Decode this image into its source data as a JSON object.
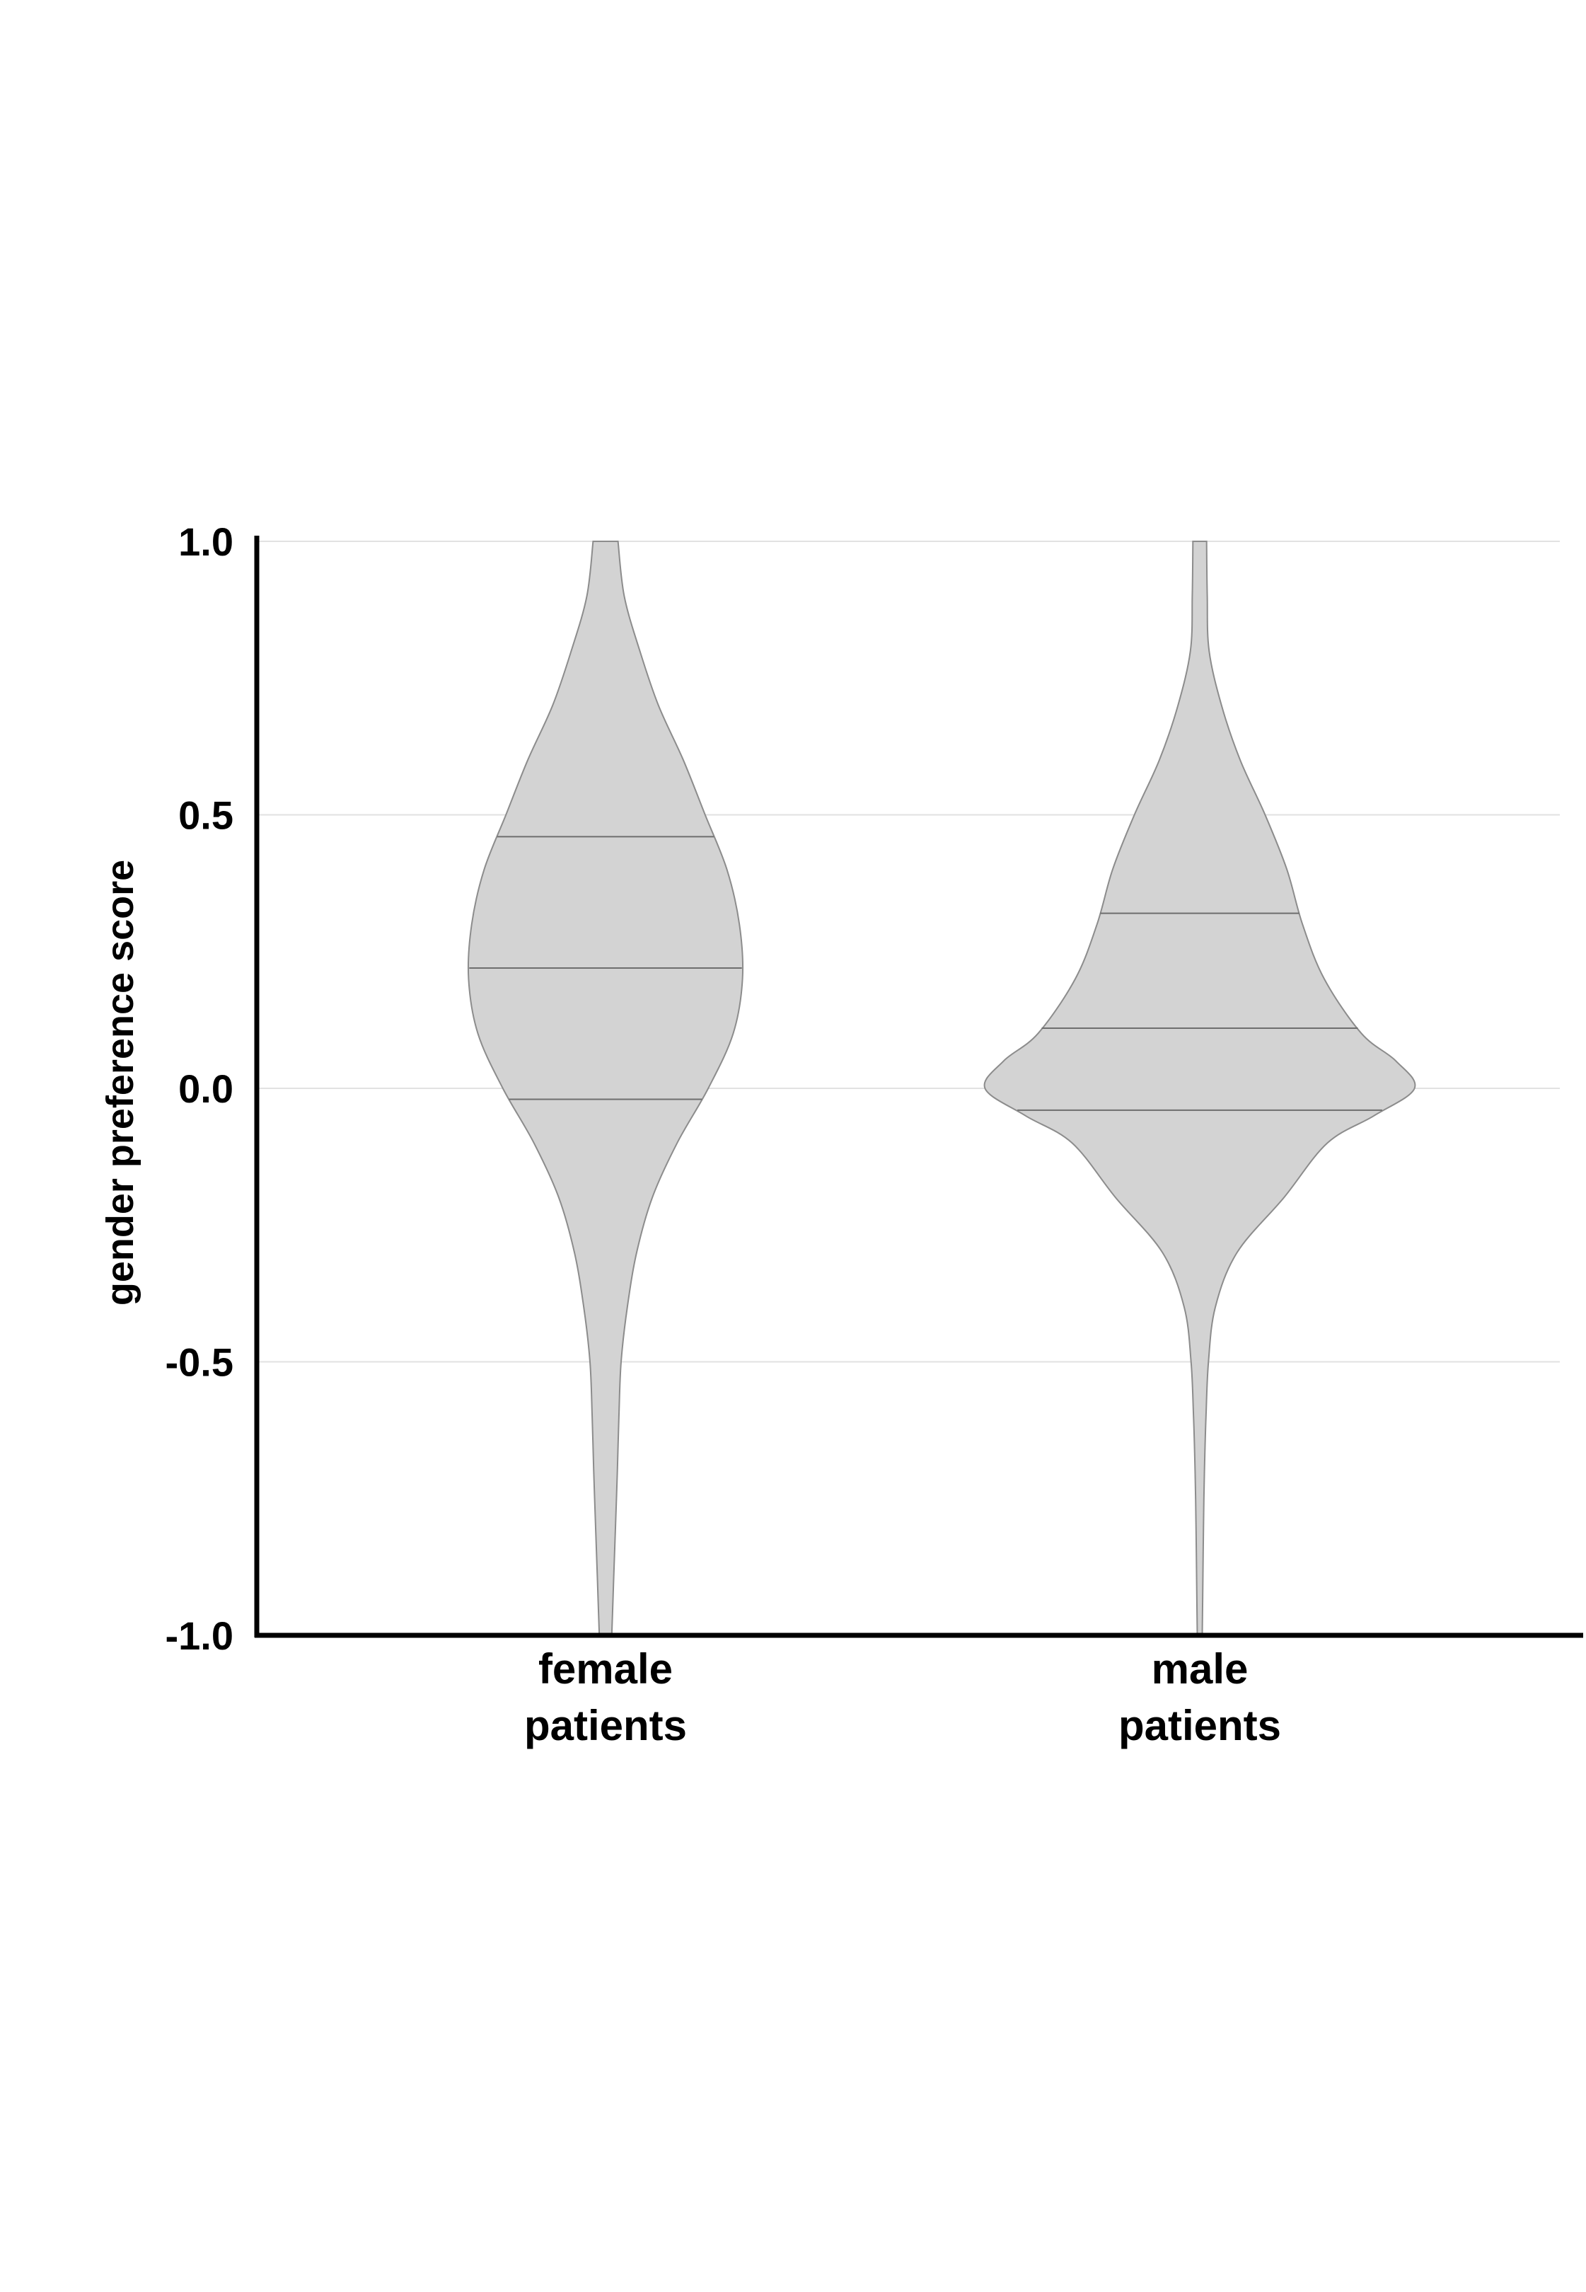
{
  "chart_data": {
    "type": "violin",
    "xlabel": "",
    "ylabel": "gender preference score",
    "ylim": [
      -1.0,
      1.0
    ],
    "yticks": [
      1.0,
      0.5,
      0.0,
      -0.5,
      -1.0
    ],
    "ytick_labels": [
      "1.0",
      "0.5",
      "0.0",
      "-0.5",
      "-1.0"
    ],
    "grid": true,
    "colors": {
      "fill": "#d3d3d3",
      "outline": "#8c8c8c",
      "axis": "#000000",
      "grid": "#e2e2e2"
    },
    "categories": [
      {
        "line1": "female",
        "line2": "patients"
      },
      {
        "line1": "male",
        "line2": "patients"
      }
    ],
    "series": [
      {
        "quartiles": [
          -0.02,
          0.22,
          0.46
        ],
        "density": [
          {
            "y": 1.0,
            "w": 0.04
          },
          {
            "y": 0.9,
            "w": 0.06
          },
          {
            "y": 0.8,
            "w": 0.11
          },
          {
            "y": 0.7,
            "w": 0.17
          },
          {
            "y": 0.6,
            "w": 0.25
          },
          {
            "y": 0.5,
            "w": 0.32
          },
          {
            "y": 0.4,
            "w": 0.39
          },
          {
            "y": 0.3,
            "w": 0.43
          },
          {
            "y": 0.2,
            "w": 0.44
          },
          {
            "y": 0.1,
            "w": 0.41
          },
          {
            "y": 0.0,
            "w": 0.33
          },
          {
            "y": -0.1,
            "w": 0.23
          },
          {
            "y": -0.2,
            "w": 0.15
          },
          {
            "y": -0.3,
            "w": 0.1
          },
          {
            "y": -0.4,
            "w": 0.07
          },
          {
            "y": -0.5,
            "w": 0.05
          },
          {
            "y": -0.6,
            "w": 0.043
          },
          {
            "y": -0.7,
            "w": 0.038
          },
          {
            "y": -0.8,
            "w": 0.032
          },
          {
            "y": -0.9,
            "w": 0.026
          },
          {
            "y": -1.0,
            "w": 0.02
          }
        ]
      },
      {
        "quartiles": [
          -0.04,
          0.11,
          0.32
        ],
        "density": [
          {
            "y": 1.0,
            "w": 0.022
          },
          {
            "y": 0.9,
            "w": 0.024
          },
          {
            "y": 0.8,
            "w": 0.03
          },
          {
            "y": 0.7,
            "w": 0.07
          },
          {
            "y": 0.6,
            "w": 0.13
          },
          {
            "y": 0.5,
            "w": 0.21
          },
          {
            "y": 0.4,
            "w": 0.28
          },
          {
            "y": 0.3,
            "w": 0.33
          },
          {
            "y": 0.2,
            "w": 0.4
          },
          {
            "y": 0.1,
            "w": 0.52
          },
          {
            "y": 0.05,
            "w": 0.63
          },
          {
            "y": 0.0,
            "w": 0.69
          },
          {
            "y": -0.05,
            "w": 0.56
          },
          {
            "y": -0.1,
            "w": 0.41
          },
          {
            "y": -0.2,
            "w": 0.27
          },
          {
            "y": -0.3,
            "w": 0.12
          },
          {
            "y": -0.4,
            "w": 0.05
          },
          {
            "y": -0.5,
            "w": 0.028
          },
          {
            "y": -0.6,
            "w": 0.02
          },
          {
            "y": -0.7,
            "w": 0.015
          },
          {
            "y": -0.8,
            "w": 0.012
          },
          {
            "y": -0.9,
            "w": 0.01
          },
          {
            "y": -1.0,
            "w": 0.008
          }
        ]
      }
    ]
  }
}
